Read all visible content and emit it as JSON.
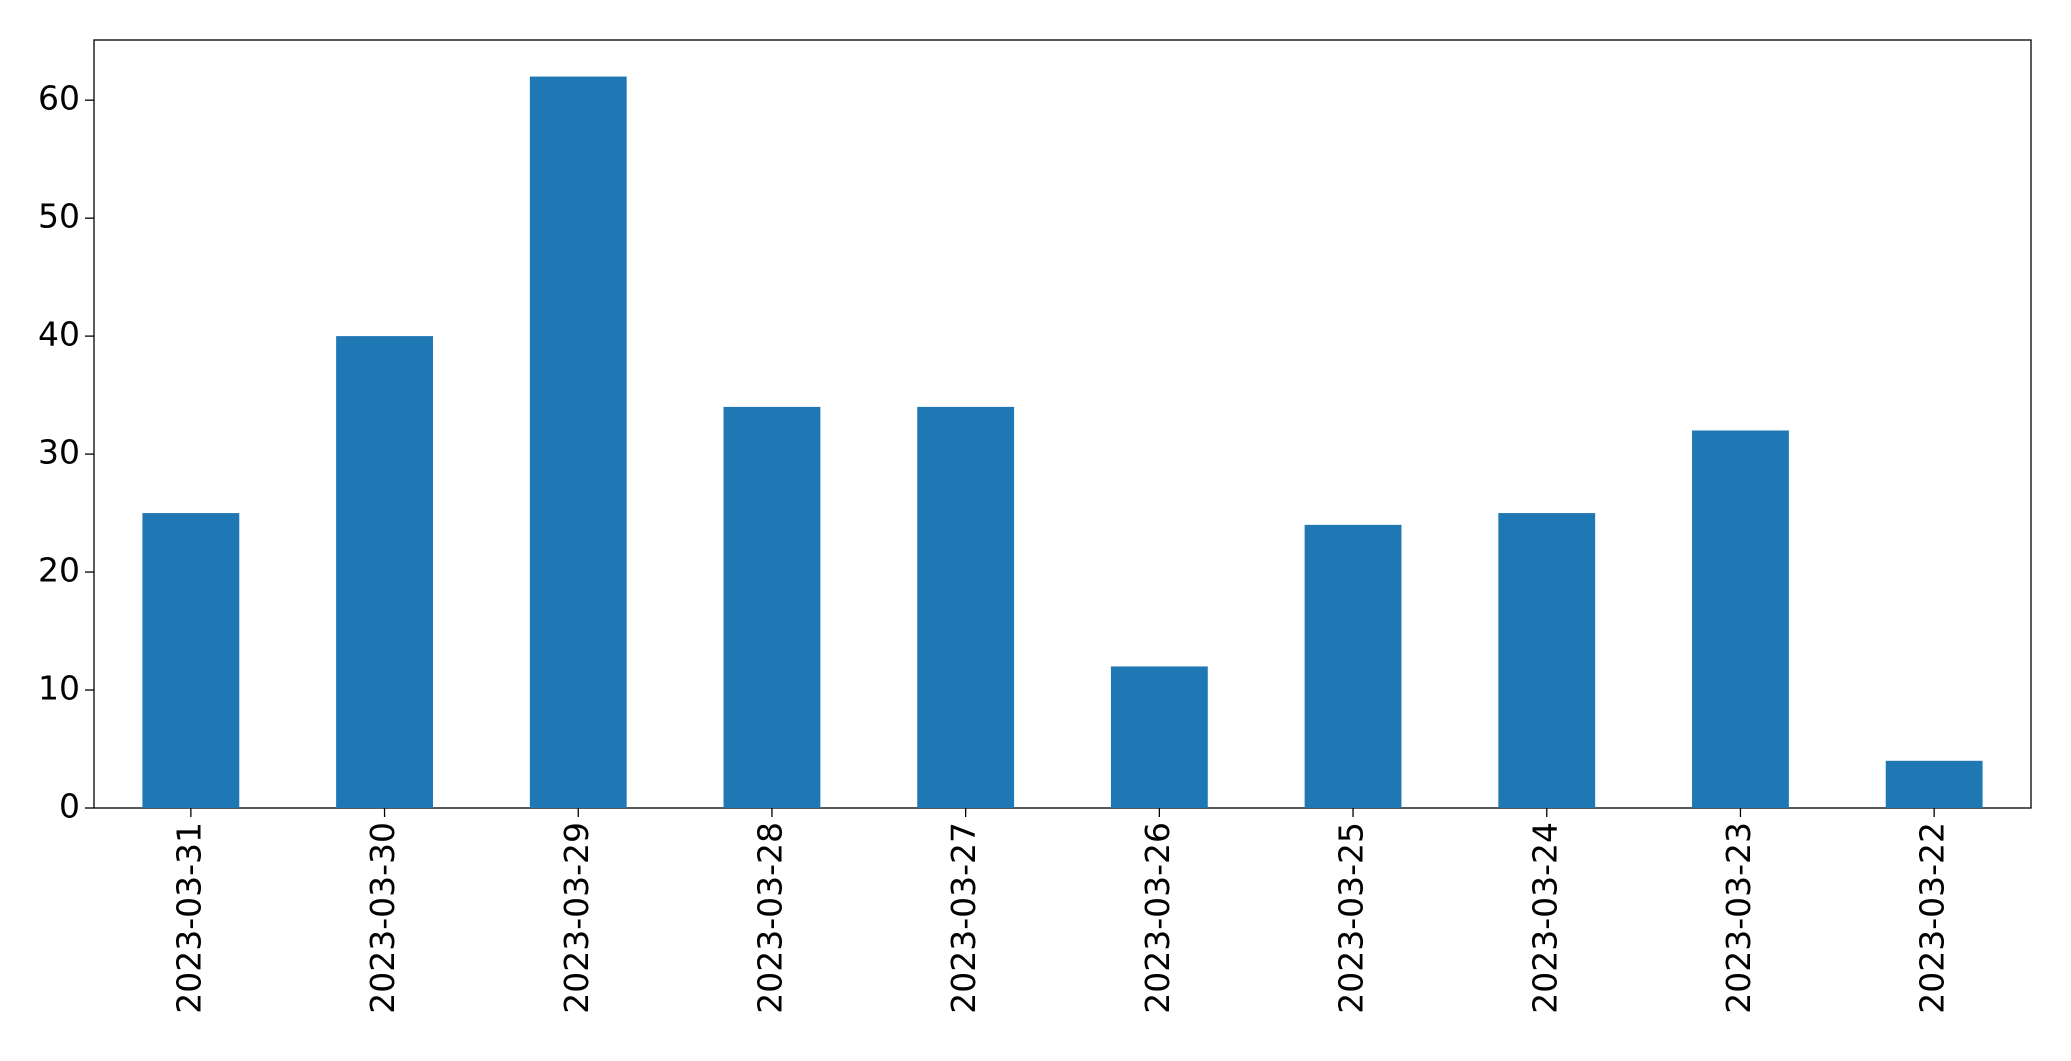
{
  "chart_data": {
    "type": "bar",
    "categories": [
      "2023-03-31",
      "2023-03-30",
      "2023-03-29",
      "2023-03-28",
      "2023-03-27",
      "2023-03-26",
      "2023-03-25",
      "2023-03-24",
      "2023-03-23",
      "2023-03-22"
    ],
    "values": [
      25,
      40,
      62,
      34,
      34,
      12,
      24,
      25,
      32,
      4
    ],
    "color": "#1f77b4",
    "ylim": [
      0,
      65.1
    ],
    "yticks": [
      0,
      10,
      20,
      30,
      40,
      50,
      60
    ],
    "grid": false
  }
}
